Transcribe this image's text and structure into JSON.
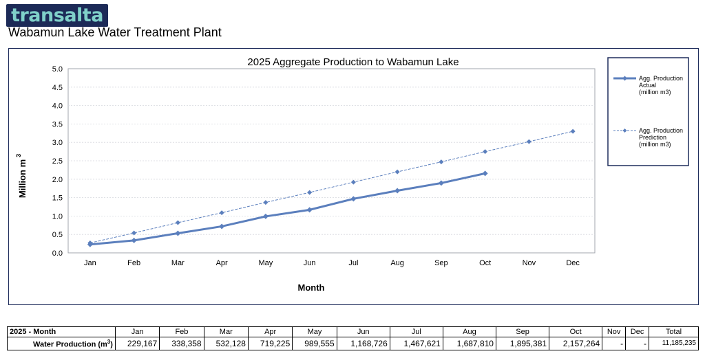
{
  "header": {
    "logo_text": "transalta",
    "plant_title": "Wabamun Lake Water Treatment Plant"
  },
  "chart_data": {
    "type": "line",
    "title": "2025 Aggregate Production to Wabamun Lake",
    "xlabel": "Month",
    "ylabel": "Million m",
    "ylabel_superscript": "3",
    "categories": [
      "Jan",
      "Feb",
      "Mar",
      "Apr",
      "May",
      "Jun",
      "Jul",
      "Aug",
      "Sep",
      "Oct",
      "Nov",
      "Dec"
    ],
    "ylim": [
      0,
      5
    ],
    "yticks": [
      "0.0",
      "0.5",
      "1.0",
      "1.5",
      "2.0",
      "2.5",
      "3.0",
      "3.5",
      "4.0",
      "4.5",
      "5.0"
    ],
    "grid": true,
    "legend_position": "right",
    "series": [
      {
        "name": "Agg. Production Actual (million m3)",
        "legend_lines": [
          "Agg. Production",
          "Actual",
          "(million m3)"
        ],
        "style": "solid",
        "color": "#5b7fbd",
        "values": [
          0.229,
          0.338,
          0.532,
          0.719,
          0.99,
          1.169,
          1.468,
          1.688,
          1.895,
          2.157,
          null,
          null
        ]
      },
      {
        "name": "Agg. Production Prediction (million m3)",
        "legend_lines": [
          "Agg. Production",
          "Prediction",
          "(million m3)"
        ],
        "style": "dashed",
        "color": "#5b7fbd",
        "values": [
          0.27,
          0.54,
          0.82,
          1.09,
          1.37,
          1.64,
          1.92,
          2.2,
          2.47,
          2.75,
          3.02,
          3.3
        ]
      }
    ]
  },
  "table": {
    "corner_label": "2025 - Month",
    "months": [
      "Jan",
      "Feb",
      "Mar",
      "Apr",
      "May",
      "Jun",
      "Jul",
      "Aug",
      "Sep",
      "Oct",
      "Nov",
      "Dec"
    ],
    "total_header": "Total",
    "row_label": "Water Production (m",
    "row_label_sup": "3",
    "row_label_end": ")",
    "values": [
      "229,167",
      "338,358",
      "532,128",
      "719,225",
      "989,555",
      "1,168,726",
      "1,467,621",
      "1,687,810",
      "1,895,381",
      "2,157,264",
      "-",
      "-"
    ],
    "total": "11,185,235"
  }
}
